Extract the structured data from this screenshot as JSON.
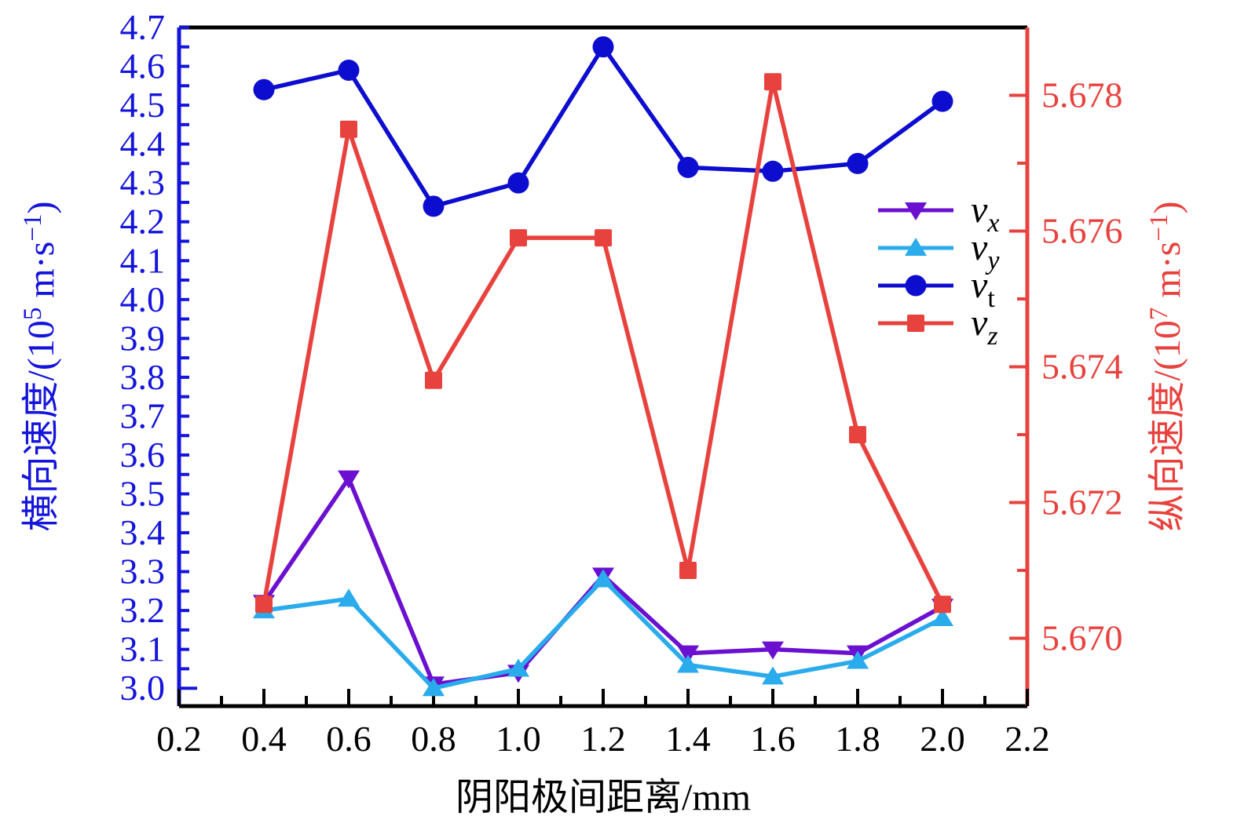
{
  "chart_data": {
    "type": "line",
    "x": [
      0.4,
      0.6,
      0.8,
      1.0,
      1.2,
      1.4,
      1.6,
      1.8,
      2.0
    ],
    "x_axis": {
      "title": "阴阳极间距离/mm",
      "min": 0.2,
      "max": 2.2,
      "major_step": 0.2,
      "minor_step": 0.1,
      "tick_labels": [
        "0.2",
        "0.4",
        "0.6",
        "0.8",
        "1.0",
        "1.2",
        "1.4",
        "1.6",
        "1.8",
        "2.0",
        "2.2"
      ],
      "color": "#000000"
    },
    "left_axis": {
      "title_parts": [
        {
          "text": "横向速度/(10"
        },
        {
          "text": "5",
          "sup": true
        },
        {
          "text": " m·s"
        },
        {
          "text": "−1",
          "sup": true
        },
        {
          "text": ")"
        }
      ],
      "min": 2.954,
      "max": 4.7,
      "major_step": 0.1,
      "minor_step": 0.05,
      "first_major": 3.0,
      "tick_labels": [
        "3.0",
        "3.1",
        "3.2",
        "3.3",
        "3.4",
        "3.5",
        "3.6",
        "3.7",
        "3.8",
        "3.9",
        "4.0",
        "4.1",
        "4.2",
        "4.3",
        "4.4",
        "4.5",
        "4.6",
        "4.7"
      ],
      "color": "#1414DC"
    },
    "right_axis": {
      "title_parts": [
        {
          "text": "纵向速度/(10"
        },
        {
          "text": "7",
          "sup": true
        },
        {
          "text": " m·s"
        },
        {
          "text": "−1",
          "sup": true
        },
        {
          "text": ")"
        }
      ],
      "min": 5.669,
      "max": 5.679,
      "major_step": 0.002,
      "minor_step": 0.001,
      "first_major": 5.67,
      "tick_labels": [
        "5.670",
        "5.672",
        "5.674",
        "5.676",
        "5.678"
      ],
      "color": "#E8423E"
    },
    "series": [
      {
        "id": "v_x",
        "legend_main": "v",
        "legend_sub": "x",
        "sub_italic": true,
        "axis": "left",
        "color": "#6B10D1",
        "marker": "triangle-down",
        "values": [
          3.22,
          3.54,
          3.01,
          3.04,
          3.29,
          3.09,
          3.1,
          3.09,
          3.21
        ]
      },
      {
        "id": "v_y",
        "legend_main": "v",
        "legend_sub": "y",
        "sub_italic": true,
        "axis": "left",
        "color": "#29ABEC",
        "marker": "triangle-up",
        "values": [
          3.2,
          3.23,
          3.0,
          3.05,
          3.28,
          3.06,
          3.03,
          3.07,
          3.18
        ]
      },
      {
        "id": "v_t",
        "legend_main": "v",
        "legend_sub": "t",
        "sub_italic": false,
        "axis": "left",
        "color": "#0D0DD0",
        "marker": "circle",
        "values": [
          4.54,
          4.59,
          4.24,
          4.3,
          4.65,
          4.34,
          4.33,
          4.35,
          4.51
        ]
      },
      {
        "id": "v_z",
        "legend_main": "v",
        "legend_sub": "z",
        "sub_italic": true,
        "axis": "right",
        "color": "#E8423E",
        "marker": "square",
        "values": [
          5.6705,
          5.6775,
          5.6738,
          5.6759,
          5.6759,
          5.671,
          5.6782,
          5.673,
          5.6705
        ]
      }
    ],
    "legend_position": "center-right"
  }
}
